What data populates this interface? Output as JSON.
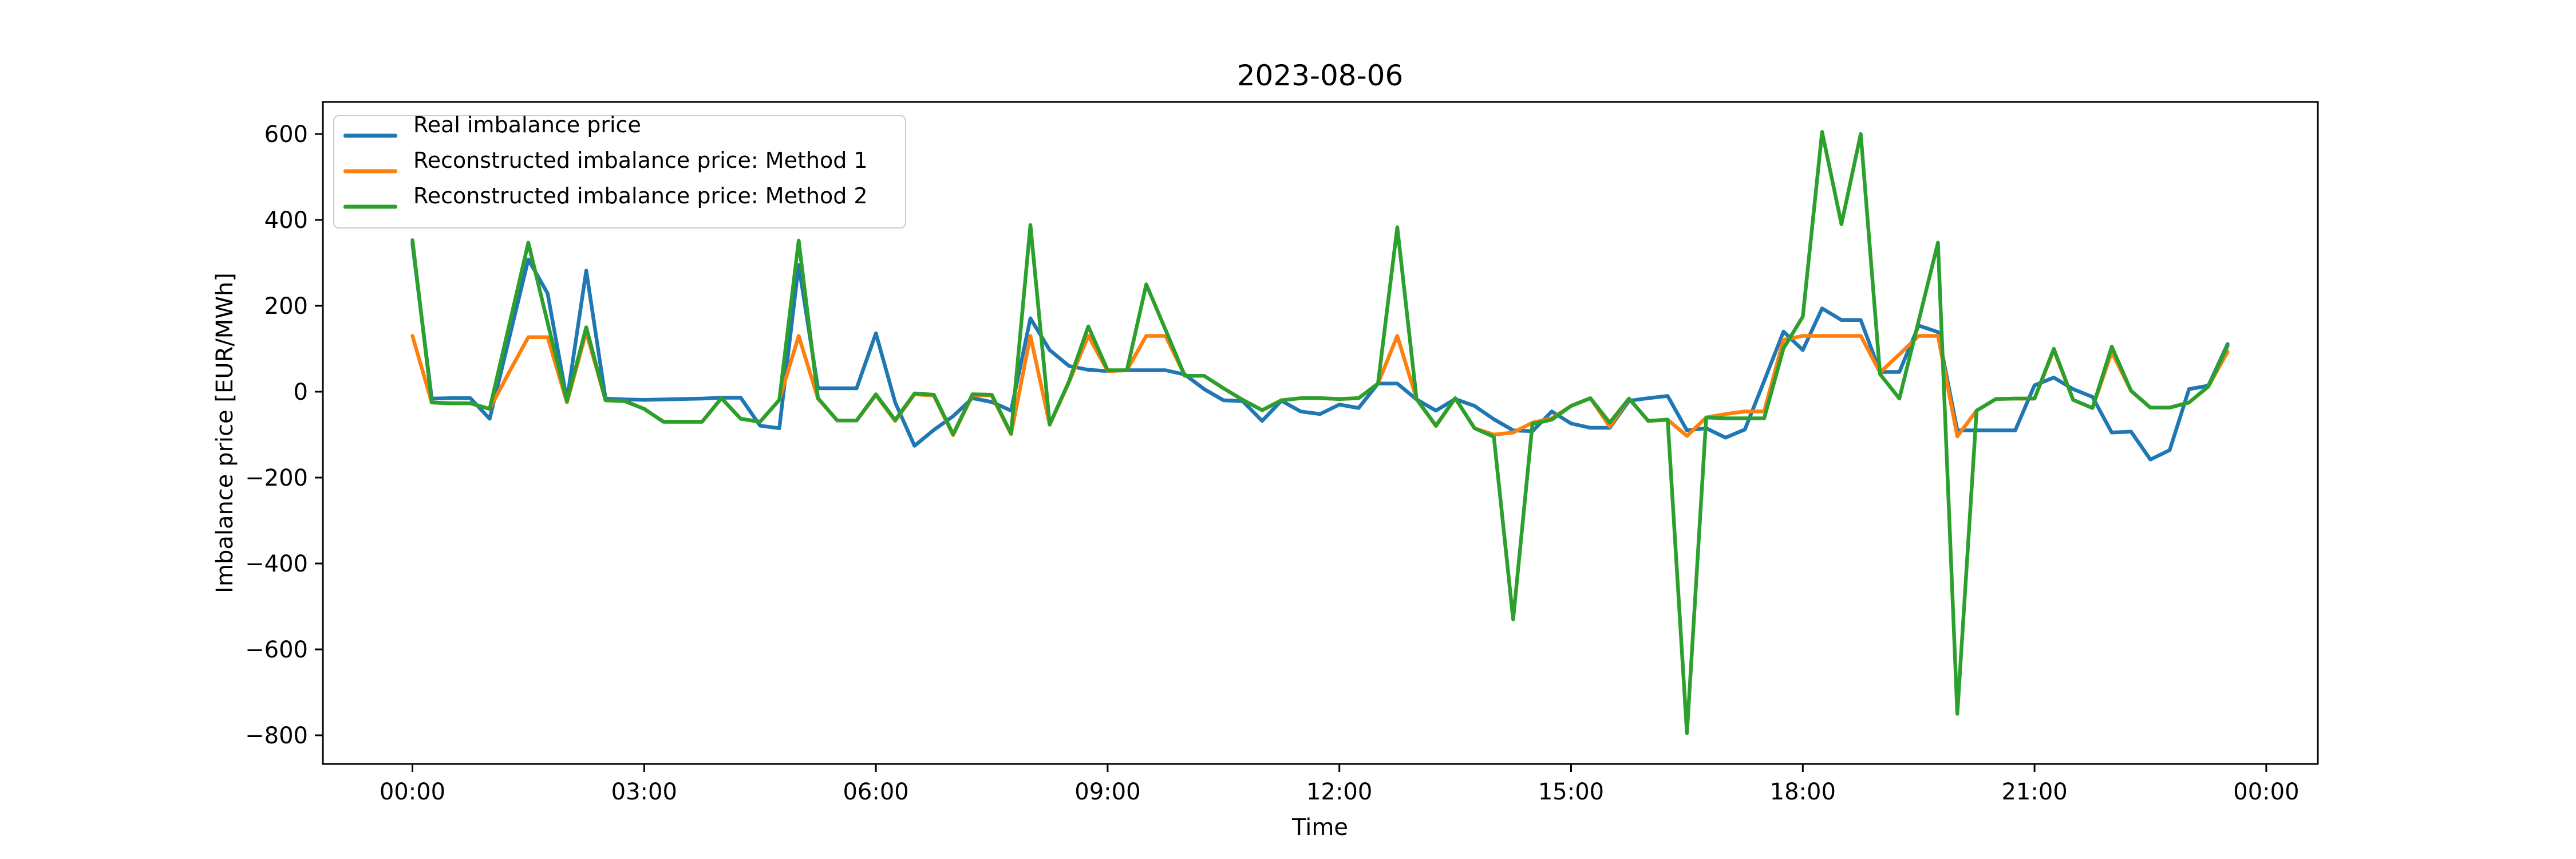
{
  "title": "2023-08-06",
  "axes": {
    "xlabel": "Time",
    "ylabel": "Imbalance price [EUR/MWh]",
    "x_ticks": [
      {
        "label": "00:00",
        "hour": 0
      },
      {
        "label": "03:00",
        "hour": 3
      },
      {
        "label": "06:00",
        "hour": 6
      },
      {
        "label": "09:00",
        "hour": 9
      },
      {
        "label": "12:00",
        "hour": 12
      },
      {
        "label": "15:00",
        "hour": 15
      },
      {
        "label": "18:00",
        "hour": 18
      },
      {
        "label": "21:00",
        "hour": 21
      },
      {
        "label": "00:00",
        "hour": 24
      }
    ],
    "y_ticks": [
      {
        "label": "600",
        "value": 600
      },
      {
        "label": "400",
        "value": 400
      },
      {
        "label": "200",
        "value": 200
      },
      {
        "label": "0",
        "value": 0
      },
      {
        "label": "−200",
        "value": -200
      },
      {
        "label": "−400",
        "value": -400
      },
      {
        "label": "−600",
        "value": -600
      },
      {
        "label": "−800",
        "value": -800
      }
    ]
  },
  "legend": {
    "position": "upper left",
    "items": [
      {
        "label": "Real imbalance price",
        "color": "#1f77b4"
      },
      {
        "label": "Reconstructed imbalance price: Method 1",
        "color": "#ff7f0e"
      },
      {
        "label": "Reconstructed imbalance price: Method 2",
        "color": "#2ca02c"
      }
    ]
  },
  "chart_data": {
    "type": "line",
    "title": "2023-08-06",
    "xlabel": "Time",
    "ylabel": "Imbalance price [EUR/MWh]",
    "grid": false,
    "ylim": [
      -866,
      674
    ],
    "x_interval_minutes": 15,
    "x_times": [
      "00:00",
      "00:15",
      "00:30",
      "00:45",
      "01:00",
      "01:15",
      "01:30",
      "01:45",
      "02:00",
      "02:15",
      "02:30",
      "02:45",
      "03:00",
      "03:15",
      "03:30",
      "03:45",
      "04:00",
      "04:15",
      "04:30",
      "04:45",
      "05:00",
      "05:15",
      "05:30",
      "05:45",
      "06:00",
      "06:15",
      "06:30",
      "06:45",
      "07:00",
      "07:15",
      "07:30",
      "07:45",
      "08:00",
      "08:15",
      "08:30",
      "08:45",
      "09:00",
      "09:15",
      "09:30",
      "09:45",
      "10:00",
      "10:15",
      "10:30",
      "10:45",
      "11:00",
      "11:15",
      "11:30",
      "11:45",
      "12:00",
      "12:15",
      "12:30",
      "12:45",
      "13:00",
      "13:15",
      "13:30",
      "13:45",
      "14:00",
      "14:15",
      "14:30",
      "14:45",
      "15:00",
      "15:15",
      "15:30",
      "15:45",
      "16:00",
      "16:15",
      "16:30",
      "16:45",
      "17:00",
      "17:15",
      "17:30",
      "17:45",
      "18:00",
      "18:15",
      "18:30",
      "18:45",
      "19:00",
      "19:15",
      "19:30",
      "19:45",
      "20:00",
      "20:15",
      "20:30",
      "20:45",
      "21:00",
      "21:15",
      "21:30",
      "21:45",
      "22:00",
      "22:15",
      "22:30",
      "22:45",
      "23:00",
      "23:15",
      "23:30"
    ],
    "series": [
      {
        "name": "Real imbalance price",
        "color": "#1f77b4",
        "values": [
          345,
          -16,
          -15,
          -15,
          -63,
          123,
          308,
          229,
          -20,
          282,
          -16,
          -18,
          -19,
          -18,
          -17,
          -16,
          -14,
          -14,
          -79,
          -85,
          295,
          8,
          8,
          8,
          136,
          -25,
          -126,
          -89,
          -57,
          -15,
          -24,
          -44,
          171,
          97,
          60,
          51,
          48,
          50,
          50,
          50,
          40,
          6,
          -20,
          -22,
          -68,
          -21,
          -46,
          -52,
          -30,
          -38,
          19,
          19,
          -18,
          -44,
          -17,
          -33,
          -64,
          -90,
          -92,
          -46,
          -74,
          -84,
          -84,
          -21,
          -15,
          -10,
          -90,
          -85,
          -107,
          -88,
          25,
          140,
          97,
          194,
          167,
          167,
          46,
          46,
          154,
          139,
          -90,
          -90,
          -90,
          -90,
          15,
          33,
          6,
          -12,
          -95,
          -93,
          -158,
          -136,
          6,
          14,
          111
        ]
      },
      {
        "name": "Reconstructed imbalance price: Method 1",
        "color": "#ff7f0e",
        "values": [
          130,
          -25,
          -27,
          -27,
          -40,
          45,
          127,
          127,
          -25,
          139,
          -20,
          -22,
          -40,
          -70,
          -70,
          -70,
          -15,
          -63,
          -70,
          -19,
          130,
          -16,
          -67,
          -67,
          -8,
          -68,
          -6,
          -9,
          -101,
          -8,
          -9,
          -99,
          130,
          -77,
          22,
          130,
          48,
          50,
          130,
          130,
          37,
          37,
          8,
          -19,
          -43,
          -20,
          -15,
          -15,
          -17,
          -15,
          19,
          130,
          -17,
          -80,
          -15,
          -85,
          -100,
          -95,
          -72,
          -62,
          -33,
          -15,
          -81,
          -16,
          -68,
          -65,
          -103,
          -60,
          -52,
          -46,
          -46,
          121,
          130,
          130,
          130,
          130,
          45,
          87,
          130,
          130,
          -104,
          -44,
          -17,
          -16,
          -16,
          97,
          -19,
          -38,
          92,
          2,
          -37,
          -37,
          -25,
          12,
          93
        ]
      },
      {
        "name": "Reconstructed imbalance price: Method 2",
        "color": "#2ca02c",
        "values": [
          353,
          -25,
          -27,
          -27,
          -40,
          153,
          347,
          161,
          -22,
          150,
          -20,
          -22,
          -40,
          -70,
          -70,
          -70,
          -15,
          -63,
          -70,
          -19,
          352,
          -15,
          -67,
          -67,
          -6,
          -66,
          -4,
          -7,
          -99,
          -6,
          -7,
          -97,
          388,
          -76,
          24,
          152,
          50,
          50,
          250,
          144,
          37,
          37,
          8,
          -19,
          -43,
          -20,
          -15,
          -15,
          -17,
          -15,
          19,
          383,
          -17,
          -79,
          -15,
          -85,
          -105,
          -530,
          -75,
          -65,
          -33,
          -15,
          -72,
          -16,
          -68,
          -65,
          -795,
          -60,
          -62,
          -62,
          -62,
          101,
          175,
          605,
          390,
          600,
          41,
          -16,
          165,
          347,
          -750,
          -44,
          -17,
          -16,
          -16,
          100,
          -19,
          -38,
          105,
          2,
          -37,
          -37,
          -25,
          12,
          107
        ]
      }
    ]
  }
}
